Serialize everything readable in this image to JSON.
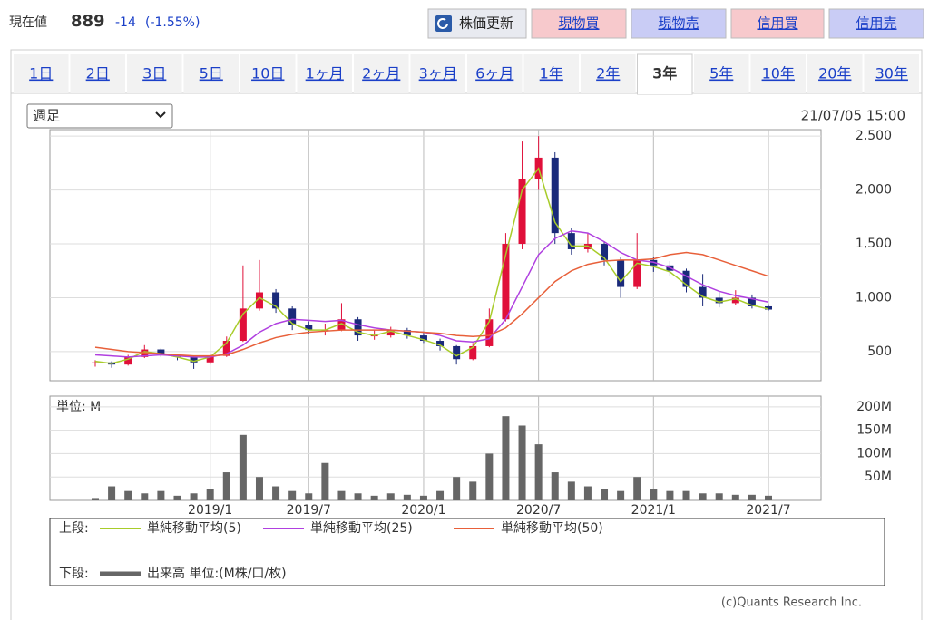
{
  "header": {
    "label": "現在値",
    "price": "889",
    "change": "-14",
    "change_pct": "(-1.55%)"
  },
  "buttons": [
    {
      "label": "株価更新",
      "color": "#e8eaf0"
    },
    {
      "label": "現物買",
      "color": "#f7c9cc"
    },
    {
      "label": "現物売",
      "color": "#c9ccf5"
    },
    {
      "label": "信用買",
      "color": "#f7c9cc"
    },
    {
      "label": "信用売",
      "color": "#c9ccf5"
    }
  ],
  "tabs": [
    "1日",
    "2日",
    "3日",
    "5日",
    "10日",
    "1ヶ月",
    "2ヶ月",
    "3ヶ月",
    "6ヶ月",
    "1年",
    "2年",
    "3年",
    "5年",
    "10年",
    "20年",
    "30年"
  ],
  "active_tab": 11,
  "period_select": "週足",
  "timestamp": "21/07/05 15:00",
  "legend": {
    "upper": "上段:",
    "lower": "下段:"
  },
  "copyright": "(c)Quants Research Inc.",
  "chart_data": [
    {
      "type": "candlestick",
      "up_color": "#e0103a",
      "down_color": "#1a2a7a",
      "candles": {
        "open": [
          390,
          400,
          380,
          450,
          520,
          470,
          450,
          400,
          460,
          600,
          900,
          1050,
          900,
          750,
          700,
          700,
          800,
          650,
          650,
          700,
          650,
          600,
          550,
          430,
          550,
          800,
          1500,
          2100,
          2300,
          1600,
          1450,
          1500,
          1350,
          1100,
          1350,
          1300,
          1250,
          1100,
          1000,
          950,
          1000,
          920
        ],
        "high": [
          420,
          410,
          470,
          560,
          530,
          480,
          460,
          480,
          640,
          1300,
          1350,
          1080,
          920,
          780,
          760,
          950,
          820,
          700,
          730,
          720,
          680,
          620,
          560,
          580,
          900,
          1600,
          2450,
          2500,
          2350,
          1650,
          1600,
          1520,
          1380,
          1600,
          1380,
          1340,
          1270,
          1220,
          1050,
          1070,
          1030,
          940
        ],
        "low": [
          360,
          350,
          370,
          440,
          450,
          420,
          340,
          380,
          450,
          590,
          880,
          860,
          700,
          660,
          650,
          690,
          600,
          610,
          630,
          620,
          580,
          510,
          380,
          420,
          540,
          780,
          1450,
          2000,
          1500,
          1400,
          1420,
          1300,
          1000,
          1080,
          1240,
          1200,
          1050,
          920,
          910,
          930,
          900,
          880
        ],
        "close": [
          400,
          380,
          450,
          520,
          470,
          450,
          400,
          460,
          600,
          900,
          1050,
          900,
          750,
          700,
          700,
          800,
          650,
          650,
          700,
          650,
          600,
          550,
          430,
          550,
          800,
          1500,
          2100,
          2300,
          1600,
          1450,
          1500,
          1350,
          1100,
          1350,
          1300,
          1250,
          1100,
          1000,
          950,
          1000,
          920,
          890
        ]
      },
      "lines": [
        {
          "name": "単純移動平均(5)",
          "color": "#a8cc2a",
          "values": [
            410,
            390,
            430,
            500,
            480,
            450,
            410,
            450,
            580,
            850,
            1000,
            920,
            760,
            700,
            700,
            760,
            680,
            650,
            690,
            650,
            610,
            560,
            460,
            540,
            780,
            1400,
            2000,
            2200,
            1700,
            1480,
            1480,
            1370,
            1150,
            1320,
            1290,
            1240,
            1120,
            1010,
            960,
            990,
            930,
            895
          ]
        },
        {
          "name": "単純移動平均(25)",
          "color": "#b040e0",
          "values": [
            470,
            460,
            450,
            460,
            470,
            460,
            450,
            450,
            480,
            560,
            680,
            760,
            800,
            790,
            780,
            790,
            750,
            720,
            700,
            690,
            680,
            650,
            600,
            590,
            620,
            800,
            1100,
            1400,
            1550,
            1620,
            1600,
            1520,
            1420,
            1350,
            1330,
            1280,
            1200,
            1120,
            1060,
            1020,
            990,
            960
          ]
        },
        {
          "name": "単純移動平均(50)",
          "color": "#e8603a",
          "values": [
            540,
            520,
            500,
            490,
            480,
            470,
            460,
            460,
            470,
            520,
            580,
            630,
            660,
            680,
            690,
            700,
            700,
            700,
            700,
            690,
            680,
            670,
            650,
            640,
            650,
            720,
            850,
            1000,
            1150,
            1250,
            1310,
            1340,
            1350,
            1350,
            1360,
            1400,
            1420,
            1400,
            1350,
            1300,
            1250,
            1200
          ]
        }
      ],
      "ylim": [
        230,
        2560
      ],
      "yticks": [
        500,
        {
          "value": 1000,
          "label": "1,000"
        },
        {
          "value": 1500,
          "label": "1,500"
        },
        {
          "value": 2000,
          "label": "2,000"
        },
        {
          "value": 2500,
          "label": "2,500"
        }
      ],
      "grid": true
    },
    {
      "type": "bar",
      "unit_label": "単位: M",
      "legend_label": "出来高 単位:(M株/口/枚)",
      "color": "#666666",
      "categories": [
        null,
        null,
        null,
        null,
        null,
        null,
        null,
        "2019/1",
        null,
        null,
        null,
        null,
        null,
        "2019/7",
        null,
        null,
        null,
        null,
        null,
        null,
        "2020/1",
        null,
        null,
        null,
        null,
        null,
        null,
        "2020/7",
        null,
        null,
        null,
        null,
        null,
        null,
        "2021/1",
        null,
        null,
        null,
        null,
        null,
        null,
        "2021/7"
      ],
      "values": [
        5,
        30,
        20,
        15,
        20,
        10,
        15,
        25,
        60,
        140,
        50,
        30,
        20,
        15,
        80,
        20,
        15,
        10,
        15,
        12,
        10,
        20,
        50,
        40,
        100,
        180,
        160,
        120,
        60,
        40,
        30,
        25,
        20,
        50,
        25,
        20,
        20,
        15,
        15,
        12,
        12,
        10
      ],
      "ylim": [
        0,
        223
      ],
      "yticks": [
        {
          "value": 50,
          "label": "50M"
        },
        {
          "value": 100,
          "label": "100M"
        },
        {
          "value": 150,
          "label": "150M"
        },
        {
          "value": 200,
          "label": "200M"
        }
      ],
      "grid": true
    }
  ]
}
